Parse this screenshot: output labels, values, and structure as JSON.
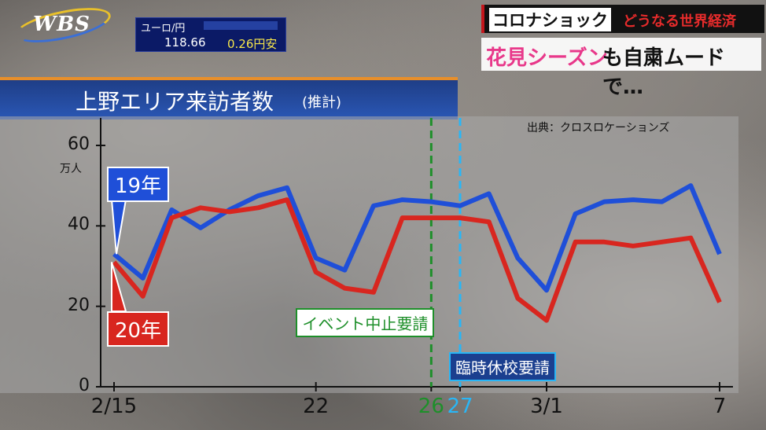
{
  "broadcast": {
    "logo": "WBS"
  },
  "fx": {
    "label": "ユーロ/円",
    "rate": "118.66",
    "change": "0.26円安"
  },
  "headline": {
    "line1_a": "コロナショック",
    "line1_b": "どうなる世界経済",
    "line2_a": "花見シーズン",
    "line2_b": "も自粛ムードで…"
  },
  "chart_data": {
    "type": "line",
    "title": "上野エリア来訪者数",
    "subtitle": "(推計)",
    "source": "出典：クロスロケーションズ",
    "ylabel": "万人",
    "ylim": [
      0,
      60
    ],
    "yticks": [
      "0",
      "20",
      "40",
      "60"
    ],
    "x": [
      15,
      16,
      17,
      18,
      19,
      20,
      21,
      22,
      23,
      24,
      25,
      26,
      27,
      28,
      29,
      1,
      2,
      3,
      4,
      5,
      6,
      7
    ],
    "xtick_labels": [
      {
        "index": 0,
        "text": "2/15"
      },
      {
        "index": 7,
        "text": "22"
      },
      {
        "index": 11,
        "text": "26",
        "color": "#1e8f2a"
      },
      {
        "index": 12,
        "text": "27",
        "color": "#29b6f6"
      },
      {
        "index": 15,
        "text": "3/1"
      },
      {
        "index": 21,
        "text": "7"
      }
    ],
    "series": [
      {
        "name": "19年",
        "color": "#1f4fd8",
        "values": [
          33,
          27,
          44,
          39.5,
          44,
          47.5,
          49.5,
          32,
          29,
          45,
          46.5,
          46,
          45,
          48,
          32,
          24,
          43,
          46,
          46.5,
          46,
          50,
          33
        ]
      },
      {
        "name": "20年",
        "color": "#d8261f",
        "values": [
          31,
          22.5,
          42,
          44.5,
          43.5,
          44.5,
          46.5,
          28.5,
          24.5,
          23.5,
          42,
          42,
          42,
          41,
          22,
          16.5,
          36,
          36,
          35,
          36,
          37,
          21
        ]
      }
    ],
    "annotations": [
      {
        "index": 11,
        "text": "イベント中止要請",
        "color": "#1e8f2a"
      },
      {
        "index": 12,
        "text": "臨時休校要請",
        "color": "#29b6f6"
      }
    ]
  }
}
